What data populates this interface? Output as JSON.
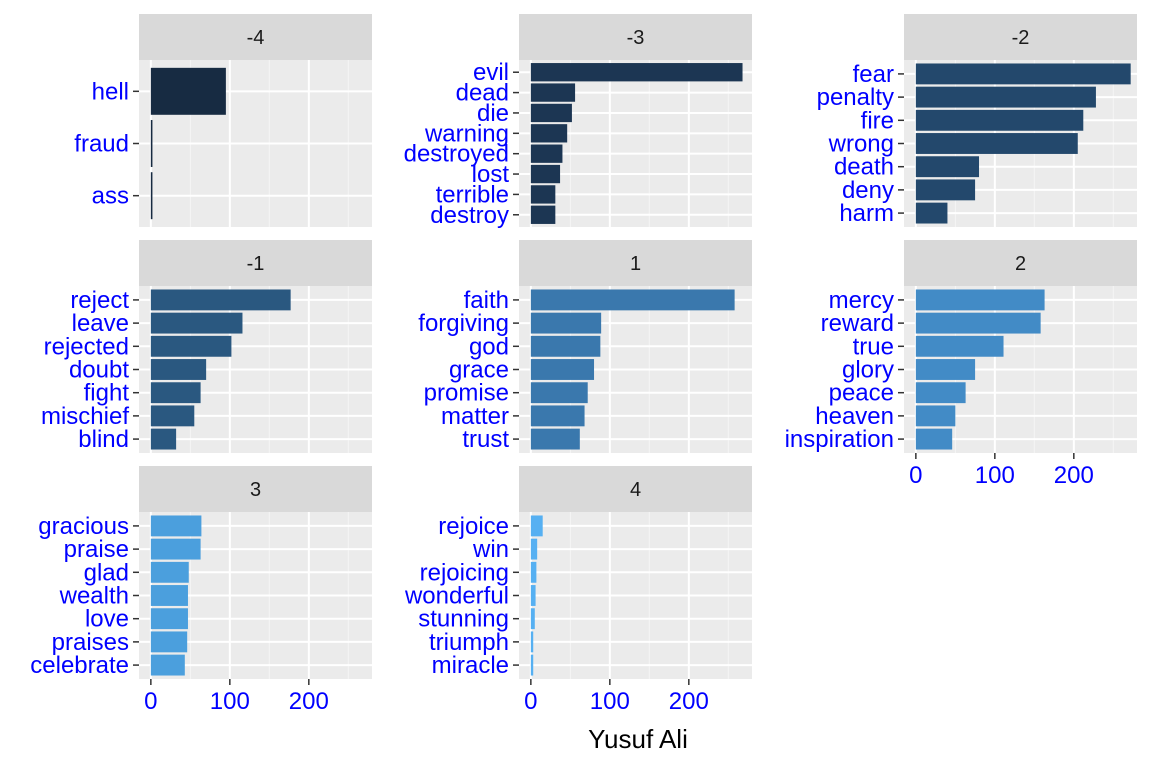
{
  "chart_data": {
    "type": "bar",
    "orientation": "horizontal",
    "layout": "facet_wrap",
    "xlabel": "Yusuf Ali",
    "xlim": [
      0,
      280
    ],
    "xticks": [
      0,
      100,
      200
    ],
    "grid": true,
    "facets": [
      {
        "label": "-4",
        "color": "#172b42",
        "categories": [
          "hell",
          "fraud",
          "ass"
        ],
        "values": [
          95,
          2,
          2
        ]
      },
      {
        "label": "-3",
        "color": "#1c3653",
        "categories": [
          "evil",
          "dead",
          "die",
          "warning",
          "destroyed",
          "lost",
          "terrible",
          "destroy"
        ],
        "values": [
          268,
          56,
          52,
          46,
          40,
          37,
          31,
          31
        ]
      },
      {
        "label": "-2",
        "color": "#23486c",
        "categories": [
          "fear",
          "penalty",
          "fire",
          "wrong",
          "death",
          "deny",
          "harm"
        ],
        "values": [
          272,
          228,
          212,
          205,
          80,
          75,
          40
        ]
      },
      {
        "label": "-1",
        "color": "#2a5880",
        "categories": [
          "reject",
          "leave",
          "rejected",
          "doubt",
          "fight",
          "mischief",
          "blind"
        ],
        "values": [
          177,
          116,
          102,
          70,
          63,
          55,
          32
        ]
      },
      {
        "label": "1",
        "color": "#3a78ad",
        "categories": [
          "faith",
          "forgiving",
          "god",
          "grace",
          "promise",
          "matter",
          "trust"
        ],
        "values": [
          258,
          89,
          88,
          80,
          72,
          68,
          62
        ]
      },
      {
        "label": "2",
        "color": "#428bc6",
        "categories": [
          "mercy",
          "reward",
          "true",
          "glory",
          "peace",
          "heaven",
          "inspiration"
        ],
        "values": [
          163,
          158,
          111,
          75,
          63,
          50,
          46
        ]
      },
      {
        "label": "3",
        "color": "#4b9fdd",
        "categories": [
          "gracious",
          "praise",
          "glad",
          "wealth",
          "love",
          "praises",
          "celebrate"
        ],
        "values": [
          64,
          63,
          48,
          47,
          47,
          46,
          43
        ]
      },
      {
        "label": "4",
        "color": "#56b0f2",
        "categories": [
          "rejoice",
          "win",
          "rejoicing",
          "wonderful",
          "stunning",
          "triumph",
          "miracle"
        ],
        "values": [
          15,
          8,
          7,
          6,
          5,
          3,
          3
        ]
      }
    ]
  }
}
